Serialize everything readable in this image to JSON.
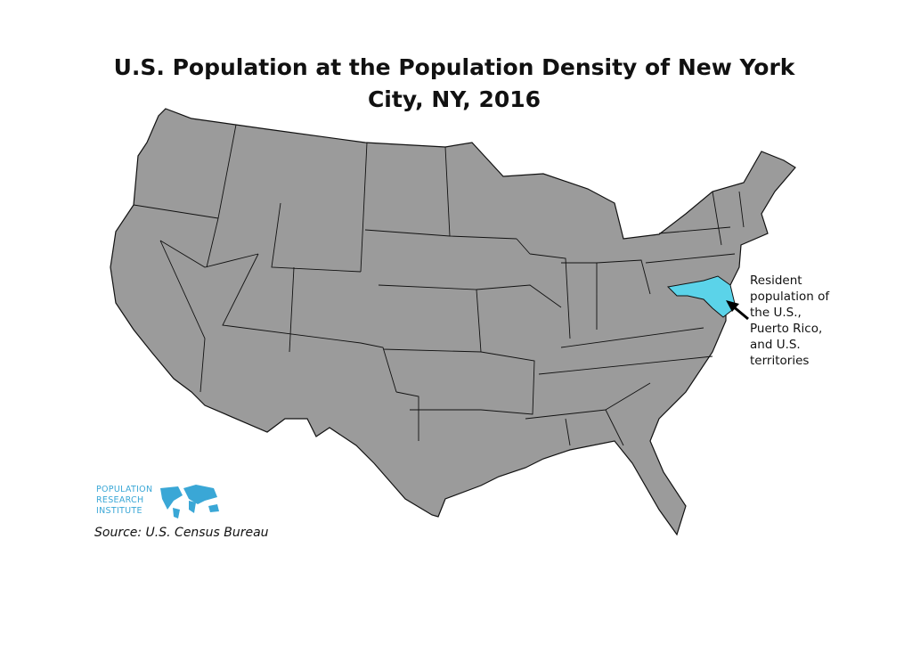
{
  "title": "U.S. Population at the Population Density of New York City, NY, 2016",
  "annotation": "Resident population of the U.S., Puerto Rico, and U.S. territories",
  "logo": "POPULATION RESEARCH INSTITUTE",
  "source": "Source: U.S. Census Bureau"
}
